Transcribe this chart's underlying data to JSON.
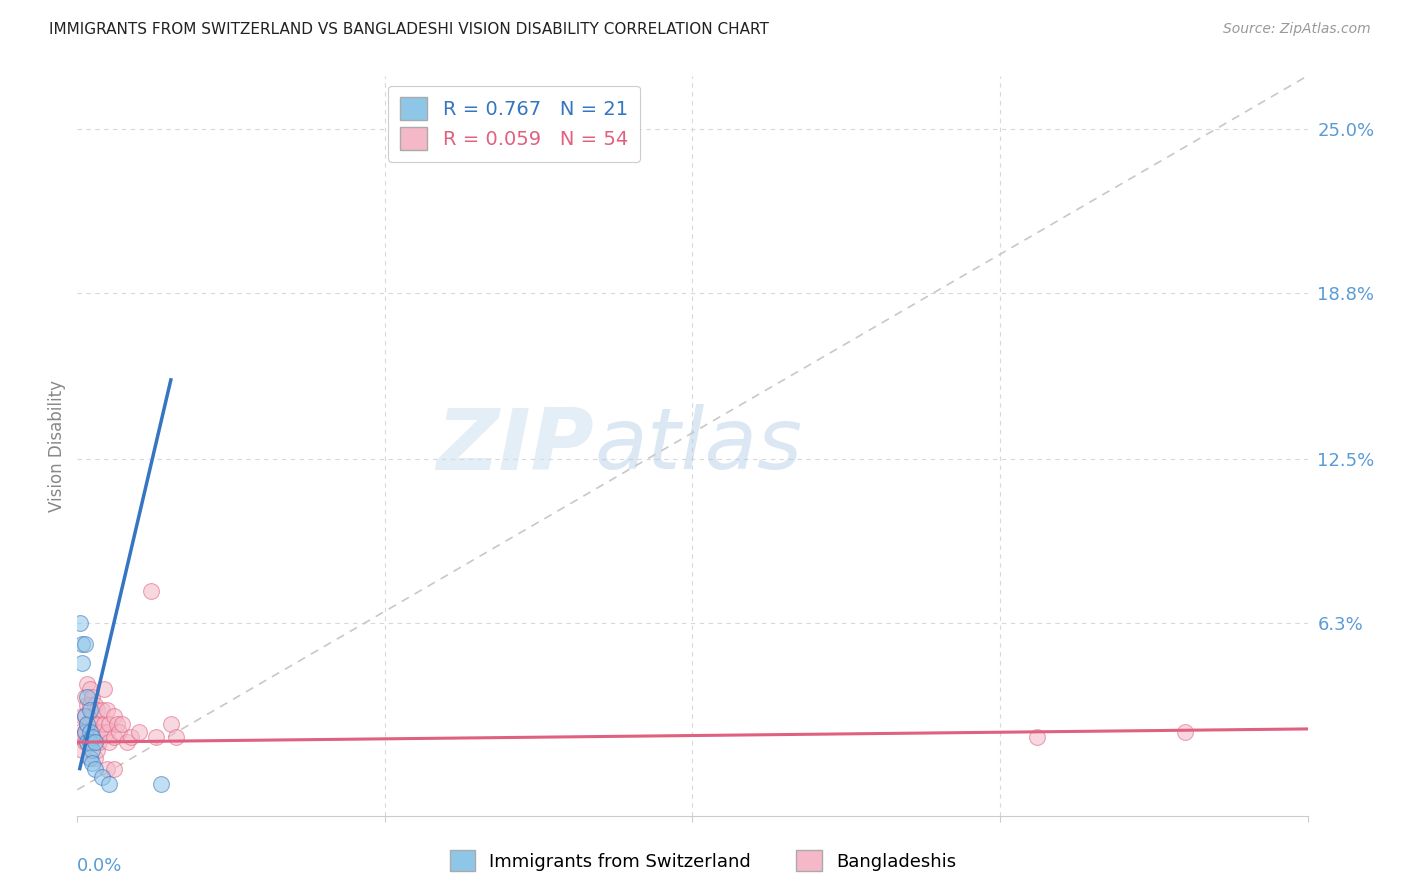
{
  "title": "IMMIGRANTS FROM SWITZERLAND VS BANGLADESHI VISION DISABILITY CORRELATION CHART",
  "source": "Source: ZipAtlas.com",
  "ylabel": "Vision Disability",
  "yticks": [
    0.0,
    0.063,
    0.125,
    0.188,
    0.25
  ],
  "ytick_labels": [
    "",
    "6.3%",
    "12.5%",
    "18.8%",
    "25.0%"
  ],
  "xlim": [
    0.0,
    0.5
  ],
  "ylim": [
    -0.01,
    0.27
  ],
  "legend_label_blue": "Immigrants from Switzerland",
  "legend_label_pink": "Bangladeshis",
  "R_blue": "0.767",
  "N_blue": "21",
  "R_pink": "0.059",
  "N_pink": "54",
  "blue_color": "#8ec6e8",
  "pink_color": "#f4b8c8",
  "blue_line_color": "#3575c2",
  "pink_line_color": "#e06080",
  "diagonal_color": "#c8c8c8",
  "watermark_zip": "ZIP",
  "watermark_atlas": "atlas",
  "blue_scatter": [
    [
      0.001,
      0.063
    ],
    [
      0.002,
      0.055
    ],
    [
      0.002,
      0.048
    ],
    [
      0.003,
      0.055
    ],
    [
      0.003,
      0.028
    ],
    [
      0.003,
      0.022
    ],
    [
      0.004,
      0.035
    ],
    [
      0.004,
      0.025
    ],
    [
      0.004,
      0.018
    ],
    [
      0.005,
      0.03
    ],
    [
      0.005,
      0.022
    ],
    [
      0.005,
      0.018
    ],
    [
      0.005,
      0.012
    ],
    [
      0.006,
      0.02
    ],
    [
      0.006,
      0.015
    ],
    [
      0.006,
      0.01
    ],
    [
      0.007,
      0.018
    ],
    [
      0.007,
      0.008
    ],
    [
      0.01,
      0.005
    ],
    [
      0.013,
      0.002
    ],
    [
      0.034,
      0.002
    ]
  ],
  "pink_scatter": [
    [
      0.001,
      0.022
    ],
    [
      0.002,
      0.028
    ],
    [
      0.002,
      0.02
    ],
    [
      0.002,
      0.015
    ],
    [
      0.003,
      0.035
    ],
    [
      0.003,
      0.028
    ],
    [
      0.003,
      0.022
    ],
    [
      0.003,
      0.018
    ],
    [
      0.004,
      0.04
    ],
    [
      0.004,
      0.032
    ],
    [
      0.004,
      0.025
    ],
    [
      0.004,
      0.018
    ],
    [
      0.005,
      0.038
    ],
    [
      0.005,
      0.032
    ],
    [
      0.005,
      0.025
    ],
    [
      0.005,
      0.018
    ],
    [
      0.005,
      0.012
    ],
    [
      0.006,
      0.035
    ],
    [
      0.006,
      0.028
    ],
    [
      0.006,
      0.022
    ],
    [
      0.006,
      0.018
    ],
    [
      0.007,
      0.032
    ],
    [
      0.007,
      0.025
    ],
    [
      0.007,
      0.018
    ],
    [
      0.007,
      0.012
    ],
    [
      0.008,
      0.03
    ],
    [
      0.008,
      0.022
    ],
    [
      0.008,
      0.015
    ],
    [
      0.009,
      0.025
    ],
    [
      0.009,
      0.018
    ],
    [
      0.01,
      0.03
    ],
    [
      0.01,
      0.022
    ],
    [
      0.011,
      0.038
    ],
    [
      0.011,
      0.025
    ],
    [
      0.012,
      0.03
    ],
    [
      0.012,
      0.022
    ],
    [
      0.012,
      0.008
    ],
    [
      0.013,
      0.025
    ],
    [
      0.013,
      0.018
    ],
    [
      0.015,
      0.028
    ],
    [
      0.015,
      0.02
    ],
    [
      0.015,
      0.008
    ],
    [
      0.016,
      0.025
    ],
    [
      0.017,
      0.022
    ],
    [
      0.018,
      0.025
    ],
    [
      0.02,
      0.018
    ],
    [
      0.022,
      0.02
    ],
    [
      0.025,
      0.022
    ],
    [
      0.03,
      0.075
    ],
    [
      0.032,
      0.02
    ],
    [
      0.038,
      0.025
    ],
    [
      0.04,
      0.02
    ],
    [
      0.39,
      0.02
    ],
    [
      0.45,
      0.022
    ]
  ],
  "blue_line": [
    [
      0.001,
      0.008
    ],
    [
      0.038,
      0.155
    ]
  ],
  "pink_line": [
    [
      0.0,
      0.018
    ],
    [
      0.5,
      0.023
    ]
  ],
  "diag_line": [
    [
      0.0,
      0.0
    ],
    [
      0.5,
      0.27
    ]
  ]
}
